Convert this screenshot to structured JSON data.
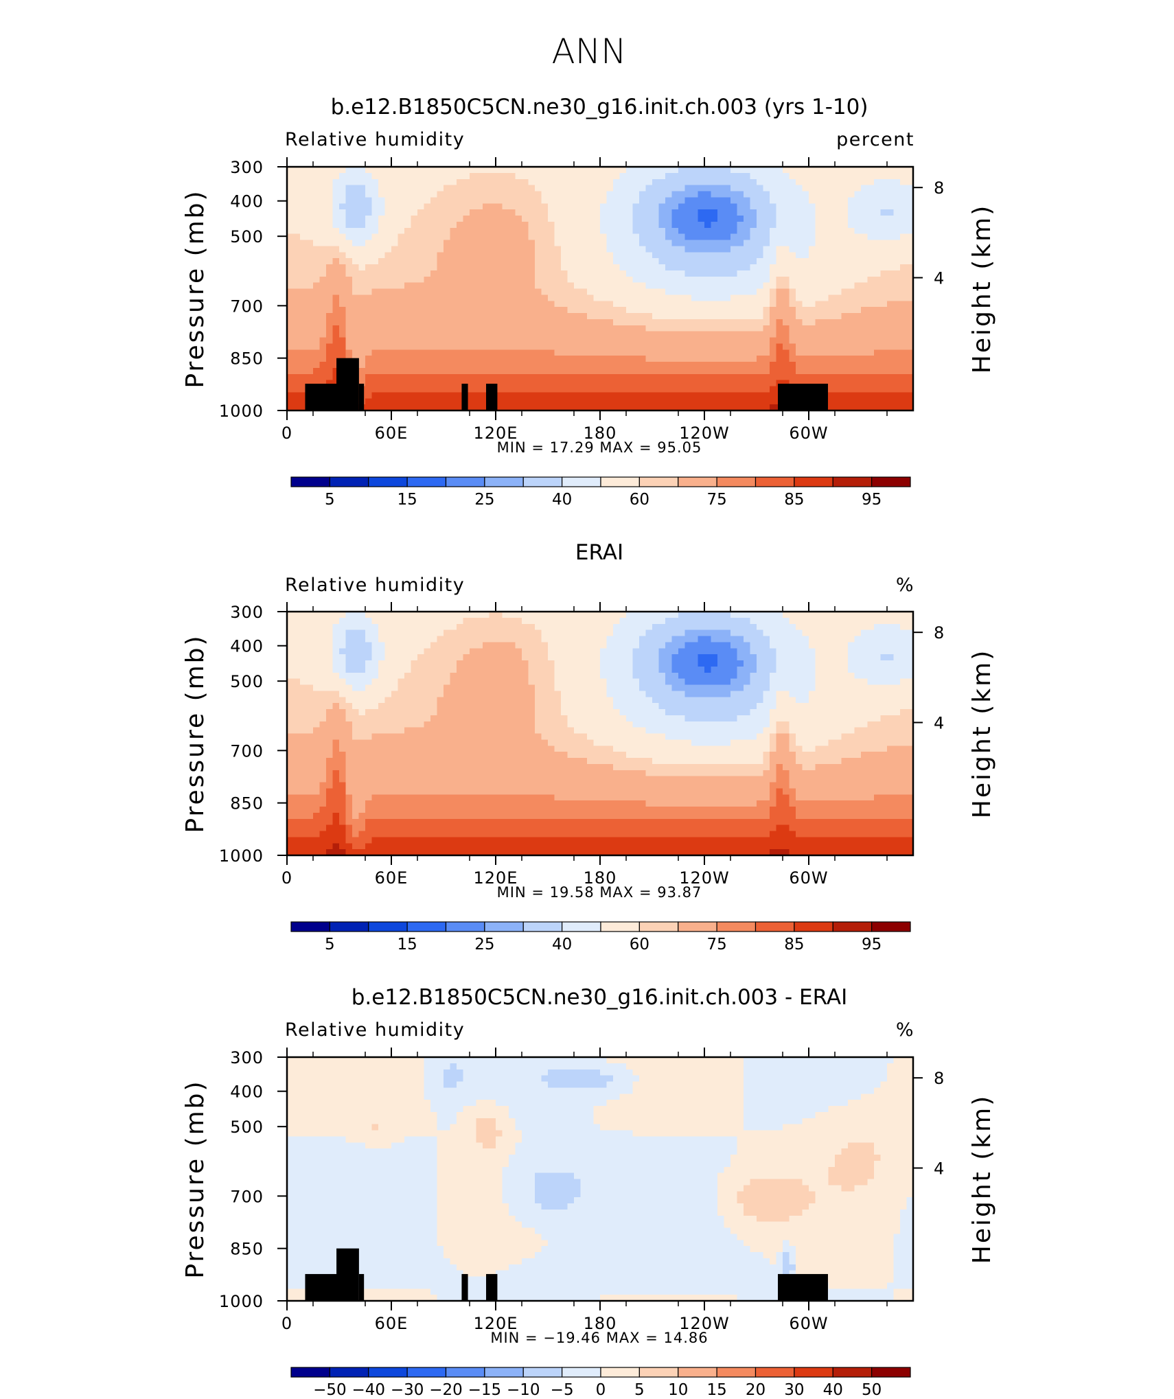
{
  "page_title": "ANN",
  "chart_data": [
    {
      "type": "heatmap",
      "title": "b.e12.B1850C5CN.ne30_g16.init.ch.003 (yrs 1-10)",
      "subtitle_left": "Relative humidity",
      "units": "percent",
      "ylabel": "Pressure (mb)",
      "y2label": "Height (km)",
      "x_ticks": [
        "0",
        "60E",
        "120E",
        "180",
        "120W",
        "60W"
      ],
      "y_ticks": [
        "300",
        "400",
        "500",
        "700",
        "850",
        "1000"
      ],
      "y2_ticks": [
        "8",
        "4"
      ],
      "min_label": "MIN =",
      "min": "17.29",
      "max_label": "MAX =",
      "max": "95.05",
      "ylim": [
        1000,
        300
      ],
      "colorbar_labels": [
        "5",
        "15",
        "25",
        "40",
        "60",
        "75",
        "85",
        "95"
      ],
      "colorbar_colors": [
        "#00008c",
        "#0022b4",
        "#0d47dc",
        "#2d69f2",
        "#5a8cf5",
        "#8cb2f8",
        "#bcd4fa",
        "#e0ecfb",
        "#fdebd9",
        "#fcd2b6",
        "#f9b08c",
        "#f48a5f",
        "#ec6135",
        "#dc3a12",
        "#b41e08",
        "#8c0000"
      ],
      "levels": [
        5,
        10,
        15,
        20,
        25,
        30,
        40,
        50,
        60,
        65,
        75,
        80,
        85,
        90,
        95
      ]
    },
    {
      "type": "heatmap",
      "title": "ERAI",
      "subtitle_left": "Relative humidity",
      "units": "%",
      "ylabel": "Pressure (mb)",
      "y2label": "Height (km)",
      "x_ticks": [
        "0",
        "60E",
        "120E",
        "180",
        "120W",
        "60W"
      ],
      "y_ticks": [
        "300",
        "400",
        "500",
        "700",
        "850",
        "1000"
      ],
      "y2_ticks": [
        "8",
        "4"
      ],
      "min_label": "MIN =",
      "min": "19.58",
      "max_label": "MAX =",
      "max": "93.87",
      "ylim": [
        1000,
        300
      ],
      "colorbar_labels": [
        "5",
        "15",
        "25",
        "40",
        "60",
        "75",
        "85",
        "95"
      ],
      "colorbar_colors": [
        "#00008c",
        "#0022b4",
        "#0d47dc",
        "#2d69f2",
        "#5a8cf5",
        "#8cb2f8",
        "#bcd4fa",
        "#e0ecfb",
        "#fdebd9",
        "#fcd2b6",
        "#f9b08c",
        "#f48a5f",
        "#ec6135",
        "#dc3a12",
        "#b41e08",
        "#8c0000"
      ],
      "levels": [
        5,
        10,
        15,
        20,
        25,
        30,
        40,
        50,
        60,
        65,
        75,
        80,
        85,
        90,
        95
      ]
    },
    {
      "type": "heatmap",
      "title": "b.e12.B1850C5CN.ne30_g16.init.ch.003 - ERAI",
      "subtitle_left": "Relative humidity",
      "units": "%",
      "ylabel": "Pressure (mb)",
      "y2label": "Height (km)",
      "x_ticks": [
        "0",
        "60E",
        "120E",
        "180",
        "120W",
        "60W"
      ],
      "y_ticks": [
        "300",
        "400",
        "500",
        "700",
        "850",
        "1000"
      ],
      "y2_ticks": [
        "8",
        "4"
      ],
      "min_label": "MIN =",
      "min": "−19.46",
      "max_label": "MAX =",
      "max": "14.86",
      "ylim": [
        1000,
        300
      ],
      "colorbar_labels": [
        "−50",
        "−40",
        "−30",
        "−20",
        "−15",
        "−10",
        "−5",
        "0",
        "5",
        "10",
        "15",
        "20",
        "30",
        "40",
        "50"
      ],
      "colorbar_colors": [
        "#00008c",
        "#0022b4",
        "#0d47dc",
        "#2d69f2",
        "#5a8cf5",
        "#8cb2f8",
        "#bcd4fa",
        "#e0ecfb",
        "#fdebd9",
        "#fcd2b6",
        "#f9b08c",
        "#f48a5f",
        "#ec6135",
        "#dc3a12",
        "#b41e08",
        "#8c0000"
      ],
      "levels": [
        -50,
        -40,
        -30,
        -20,
        -15,
        -10,
        -5,
        0,
        5,
        10,
        15,
        20,
        30,
        40,
        50
      ]
    }
  ]
}
